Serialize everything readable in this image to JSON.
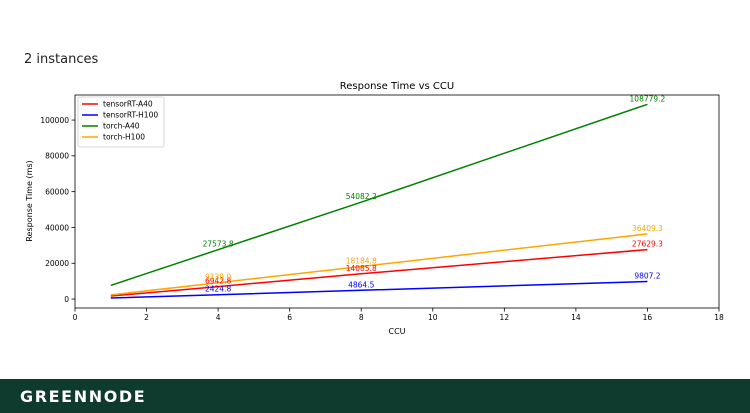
{
  "page": {
    "heading": "2 instances",
    "logo_text": "GREENNODE",
    "footer_color": "#0f3b2e"
  },
  "chart_data": {
    "type": "line",
    "title": "Response Time vs CCU",
    "xlabel": "CCU",
    "ylabel": "Response Time (ms)",
    "xlim": [
      0,
      18
    ],
    "ylim": [
      -5000,
      114000
    ],
    "xticks": [
      0,
      2,
      4,
      6,
      8,
      10,
      12,
      14,
      16,
      18
    ],
    "yticks": [
      0,
      20000,
      40000,
      60000,
      80000,
      100000
    ],
    "grid": false,
    "legend_position": "top-left",
    "x": [
      1,
      4,
      8,
      16
    ],
    "series": [
      {
        "name": "tensorRT-A40",
        "color": "#ff0000",
        "values": [
          1726,
          6942.8,
          14085.8,
          27629.3
        ],
        "point_labels": [
          null,
          "6942.8",
          "14085.8",
          "27629.3"
        ]
      },
      {
        "name": "tensorRT-H100",
        "color": "#0000ff",
        "values": [
          600,
          2424.8,
          4864.5,
          9807.2
        ],
        "point_labels": [
          null,
          "2424.8",
          "4864.5",
          "9807.2"
        ]
      },
      {
        "name": "torch-A40",
        "color": "#008000",
        "values": [
          7600,
          27573.8,
          54082.2,
          108779.2
        ],
        "point_labels": [
          null,
          "27573.8",
          "54082.2",
          "108779.2"
        ]
      },
      {
        "name": "torch-H100",
        "color": "#ffa500",
        "values": [
          2300,
          9139.0,
          18184.8,
          36409.3
        ],
        "point_labels": [
          null,
          "9139.0",
          "18184.8",
          "36409.3"
        ]
      }
    ]
  }
}
